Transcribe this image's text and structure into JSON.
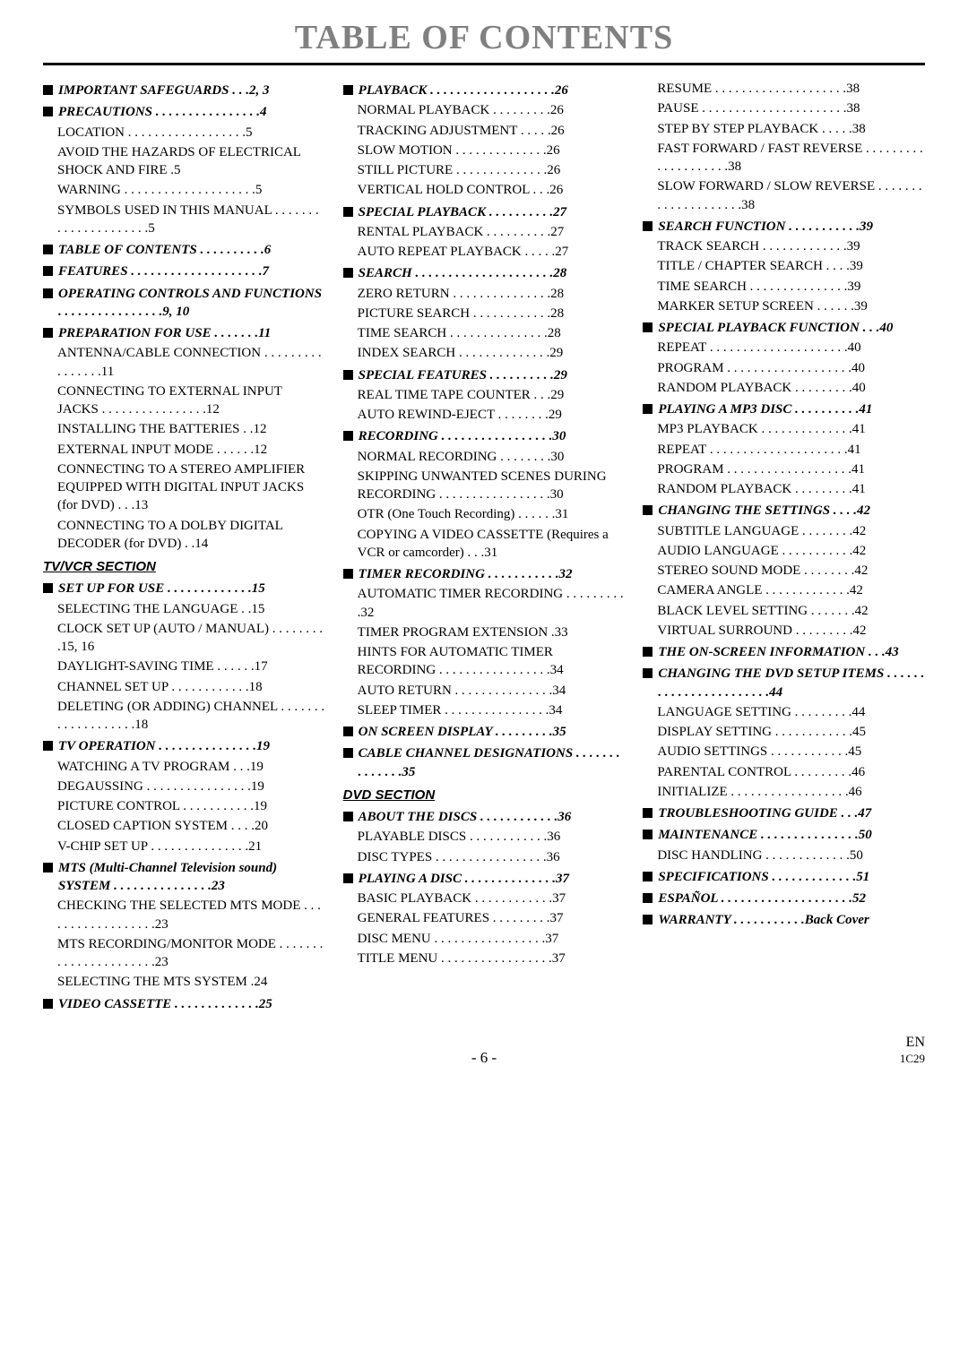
{
  "title": "TABLE OF CONTENTS",
  "footer": {
    "page": "- 6 -",
    "en": "EN",
    "code": "1C29"
  },
  "section_labels": {
    "tvvcr": "TV/VCR SECTION",
    "dvd": "DVD SECTION"
  },
  "col1": [
    {
      "type": "h",
      "text": "IMPORTANT SAFEGUARDS  . . .2, 3"
    },
    {
      "type": "h",
      "text": "PRECAUTIONS  . . . . . . . . . . . . . . . .4"
    },
    {
      "type": "e",
      "text": "LOCATION  . . . . . . . . . . . . . . . . . .5"
    },
    {
      "type": "e",
      "text": "AVOID THE HAZARDS OF ELECTRICAL SHOCK AND FIRE  .5"
    },
    {
      "type": "e",
      "text": "WARNING  . . . . . . . . . . . . . . . . . . . .5"
    },
    {
      "type": "e",
      "text": "SYMBOLS USED IN THIS MANUAL . . . . . . . . . . . . . . . . . . . . .5"
    },
    {
      "type": "h",
      "text": "TABLE OF CONTENTS  . . . . . . . . . .6"
    },
    {
      "type": "h",
      "text": "FEATURES . . . . . . . . . . . . . . . . . . . .7"
    },
    {
      "type": "h",
      "text": "OPERATING CONTROLS AND FUNCTIONS . . . . . . . . . . . . . . . .9, 10"
    },
    {
      "type": "h",
      "text": "PREPARATION FOR USE  . . . . . . .11"
    },
    {
      "type": "e",
      "text": "ANTENNA/CABLE CONNECTION . . . . . . . . . . . . . . . .11"
    },
    {
      "type": "e",
      "text": "CONNECTING TO EXTERNAL INPUT JACKS  . . . . . . . . . . . . . . . .12"
    },
    {
      "type": "e",
      "text": "INSTALLING THE BATTERIES  . .12"
    },
    {
      "type": "e",
      "text": "EXTERNAL INPUT MODE  . . . . . .12"
    },
    {
      "type": "e",
      "text": "CONNECTING TO A STEREO AMPLIFIER EQUIPPED WITH DIGITAL INPUT JACKS (for DVD)  . . .13"
    },
    {
      "type": "e",
      "text": "CONNECTING TO A DOLBY DIGITAL DECODER (for DVD)  . .14"
    },
    {
      "type": "s",
      "key": "tvvcr"
    },
    {
      "type": "h",
      "text": "SET UP FOR USE  . . . . . . . . . . . . .15"
    },
    {
      "type": "e",
      "text": "SELECTING THE LANGUAGE  . .15"
    },
    {
      "type": "e",
      "text": "CLOCK SET UP (AUTO / MANUAL) . . . . . . . . .15, 16"
    },
    {
      "type": "e",
      "text": "DAYLIGHT-SAVING TIME  . . . . . .17"
    },
    {
      "type": "e",
      "text": "CHANNEL SET UP  . . . . . . . . . . . .18"
    },
    {
      "type": "e",
      "text": "DELETING (OR ADDING) CHANNEL  . . . . . . . . . . . . . . . . . . .18"
    },
    {
      "type": "h",
      "text": "TV OPERATION . . . . . . . . . . . . . . .19"
    },
    {
      "type": "e",
      "text": "WATCHING A TV PROGRAM  . . .19"
    },
    {
      "type": "e",
      "text": "DEGAUSSING . . . . . . . . . . . . . . . .19"
    },
    {
      "type": "e",
      "text": "PICTURE CONTROL . . . . . . . . . . .19"
    },
    {
      "type": "e",
      "text": "CLOSED CAPTION SYSTEM . . . .20"
    },
    {
      "type": "e",
      "text": "V-CHIP SET UP  . . . . . . . . . . . . . . .21"
    },
    {
      "type": "h",
      "text": "MTS (Multi-Channel Television sound) SYSTEM  . . . . . . . . . . . . . . .23"
    },
    {
      "type": "e",
      "text": "CHECKING THE SELECTED MTS MODE  . . . . . . . . . . . . . . . . . .23"
    },
    {
      "type": "e",
      "text": "MTS RECORDING/MONITOR MODE  . . . . . . . . . . . . . . . . . . . . . .23"
    },
    {
      "type": "e",
      "text": "SELECTING THE MTS SYSTEM .24"
    },
    {
      "type": "h",
      "text": "VIDEO CASSETTE . . . . . . . . . . . . .25"
    }
  ],
  "col2": [
    {
      "type": "h",
      "text": "PLAYBACK  . . . . . . . . . . . . . . . . . . .26"
    },
    {
      "type": "e",
      "text": "NORMAL PLAYBACK  . . . . . . . . .26"
    },
    {
      "type": "e",
      "text": "TRACKING ADJUSTMENT  . . . . .26"
    },
    {
      "type": "e",
      "text": "SLOW MOTION  . . . . . . . . . . . . . .26"
    },
    {
      "type": "e",
      "text": "STILL PICTURE  . . . . . . . . . . . . . .26"
    },
    {
      "type": "e",
      "text": "VERTICAL HOLD CONTROL  . . .26"
    },
    {
      "type": "h",
      "text": "SPECIAL PLAYBACK  . . . . . . . . . .27"
    },
    {
      "type": "e",
      "text": "RENTAL PLAYBACK  . . . . . . . . . .27"
    },
    {
      "type": "e",
      "text": "AUTO REPEAT PLAYBACK . . . . .27"
    },
    {
      "type": "h",
      "text": "SEARCH  . . . . . . . . . . . . . . . . . . . . .28"
    },
    {
      "type": "e",
      "text": "ZERO RETURN  . . . . . . . . . . . . . . .28"
    },
    {
      "type": "e",
      "text": "PICTURE SEARCH  . . . . . . . . . . . .28"
    },
    {
      "type": "e",
      "text": "TIME SEARCH  . . . . . . . . . . . . . . .28"
    },
    {
      "type": "e",
      "text": "INDEX SEARCH  . . . . . . . . . . . . . .29"
    },
    {
      "type": "h",
      "text": "SPECIAL FEATURES  . . . . . . . . . .29"
    },
    {
      "type": "e",
      "text": "REAL TIME TAPE COUNTER  . . .29"
    },
    {
      "type": "e",
      "text": "AUTO REWIND-EJECT  . . . . . . . .29"
    },
    {
      "type": "h",
      "text": "RECORDING  . . . . . . . . . . . . . . . . .30"
    },
    {
      "type": "e",
      "text": "NORMAL RECORDING  . . . . . . . .30"
    },
    {
      "type": "e",
      "text": "SKIPPING UNWANTED SCENES DURING RECORDING  . . . . . . . . . . . . . . . . .30"
    },
    {
      "type": "e",
      "text": "OTR (One Touch Recording) . . . . . .31"
    },
    {
      "type": "e",
      "text": "COPYING A VIDEO CASSETTE (Requires a VCR or camcorder)  . . .31"
    },
    {
      "type": "h",
      "text": "TIMER RECORDING . . . . . . . . . . .32"
    },
    {
      "type": "e",
      "text": "AUTOMATIC TIMER RECORDING  . . . . . . . . . .32"
    },
    {
      "type": "e",
      "text": "TIMER PROGRAM EXTENSION .33"
    },
    {
      "type": "e",
      "text": "HINTS FOR AUTOMATIC TIMER RECORDING . . . . . . . . . . . . . . . . .34"
    },
    {
      "type": "e",
      "text": "AUTO RETURN . . . . . . . . . . . . . . .34"
    },
    {
      "type": "e",
      "text": "SLEEP TIMER  . . . . . . . . . . . . . . . .34"
    },
    {
      "type": "h",
      "text": "ON SCREEN DISPLAY  . . . . . . . . .35"
    },
    {
      "type": "h",
      "text": "CABLE CHANNEL DESIGNATIONS  . . . . . . . . . . . . . .35"
    },
    {
      "type": "s",
      "key": "dvd"
    },
    {
      "type": "h",
      "text": "ABOUT THE DISCS . . . . . . . . . . . .36"
    },
    {
      "type": "e",
      "text": "PLAYABLE DISCS  . . . . . . . . . . . .36"
    },
    {
      "type": "e",
      "text": "DISC TYPES  . . . . . . . . . . . . . . . . .36"
    },
    {
      "type": "h",
      "text": "PLAYING A DISC  . . . . . . . . . . . . . .37"
    },
    {
      "type": "e",
      "text": "BASIC PLAYBACK . . . . . . . . . . . .37"
    },
    {
      "type": "e",
      "text": "GENERAL FEATURES  . . . . . . . . .37"
    },
    {
      "type": "e",
      "text": "DISC MENU  . . . . . . . . . . . . . . . . .37"
    },
    {
      "type": "e",
      "text": "TITLE MENU . . . . . . . . . . . . . . . . .37"
    }
  ],
  "col3": [
    {
      "type": "e",
      "text": "RESUME  . . . . . . . . . . . . . . . . . . . .38"
    },
    {
      "type": "e",
      "text": "PAUSE  . . . . . . . . . . . . . . . . . . . . . .38"
    },
    {
      "type": "e",
      "text": "STEP BY STEP PLAYBACK  . . . . .38"
    },
    {
      "type": "e",
      "text": "FAST FORWARD / FAST REVERSE . . . . . . . . . . . . . . . . . . . .38"
    },
    {
      "type": "e",
      "text": "SLOW FORWARD / SLOW REVERSE . . . . . . . . . . . . . . . . . . . .38"
    },
    {
      "type": "h",
      "text": "SEARCH FUNCTION . . . . . . . . . . .39"
    },
    {
      "type": "e",
      "text": "TRACK SEARCH  . . . . . . . . . . . . .39"
    },
    {
      "type": "e",
      "text": "TITLE / CHAPTER SEARCH  . . . .39"
    },
    {
      "type": "e",
      "text": "TIME SEARCH  . . . . . . . . . . . . . . .39"
    },
    {
      "type": "e",
      "text": "MARKER SETUP SCREEN . . . . . .39"
    },
    {
      "type": "h",
      "text": "SPECIAL PLAYBACK FUNCTION  . . .40"
    },
    {
      "type": "e",
      "text": "REPEAT  . . . . . . . . . . . . . . . . . . . . .40"
    },
    {
      "type": "e",
      "text": "PROGRAM . . . . . . . . . . . . . . . . . . .40"
    },
    {
      "type": "e",
      "text": "RANDOM PLAYBACK  . . . . . . . . .40"
    },
    {
      "type": "h",
      "text": "PLAYING A MP3 DISC . . . . . . . . . .41"
    },
    {
      "type": "e",
      "text": "MP3 PLAYBACK . . . . . . . . . . . . . .41"
    },
    {
      "type": "e",
      "text": "REPEAT  . . . . . . . . . . . . . . . . . . . . .41"
    },
    {
      "type": "e",
      "text": "PROGRAM . . . . . . . . . . . . . . . . . . .41"
    },
    {
      "type": "e",
      "text": "RANDOM PLAYBACK  . . . . . . . . .41"
    },
    {
      "type": "h",
      "text": "CHANGING THE SETTINGS  . . . .42"
    },
    {
      "type": "e",
      "text": "SUBTITLE LANGUAGE  . . . . . . . .42"
    },
    {
      "type": "e",
      "text": "AUDIO LANGUAGE  . . . . . . . . . . .42"
    },
    {
      "type": "e",
      "text": "STEREO SOUND MODE . . . . . . . .42"
    },
    {
      "type": "e",
      "text": "CAMERA ANGLE  . . . . . . . . . . . . .42"
    },
    {
      "type": "e",
      "text": "BLACK LEVEL SETTING . . . . . . .42"
    },
    {
      "type": "e",
      "text": "VIRTUAL SURROUND  . . . . . . . . .42"
    },
    {
      "type": "h",
      "text": "THE ON-SCREEN INFORMATION . . .43"
    },
    {
      "type": "h",
      "text": "CHANGING THE DVD SETUP ITEMS  . . . . . . . . . . . . . . . . . . . . . . .44"
    },
    {
      "type": "e",
      "text": "LANGUAGE SETTING  . . . . . . . . .44"
    },
    {
      "type": "e",
      "text": "DISPLAY SETTING . . . . . . . . . . . .45"
    },
    {
      "type": "e",
      "text": "AUDIO SETTINGS  . . . . . . . . . . . .45"
    },
    {
      "type": "e",
      "text": "PARENTAL CONTROL  . . . . . . . . .46"
    },
    {
      "type": "e",
      "text": "INITIALIZE  . . . . . . . . . . . . . . . . . .46"
    },
    {
      "type": "h",
      "text": "TROUBLESHOOTING GUIDE  . . .47"
    },
    {
      "type": "h",
      "text": "MAINTENANCE . . . . . . . . . . . . . . .50"
    },
    {
      "type": "e",
      "text": "DISC HANDLING  . . . . . . . . . . . . .50"
    },
    {
      "type": "h",
      "text": "SPECIFICATIONS  . . . . . . . . . . . . .51"
    },
    {
      "type": "h",
      "text": "ESPAÑOL  . . . . . . . . . . . . . . . . . . . .52"
    },
    {
      "type": "h",
      "text": "WARRANTY  . . . . . . . . . . .Back Cover"
    }
  ]
}
